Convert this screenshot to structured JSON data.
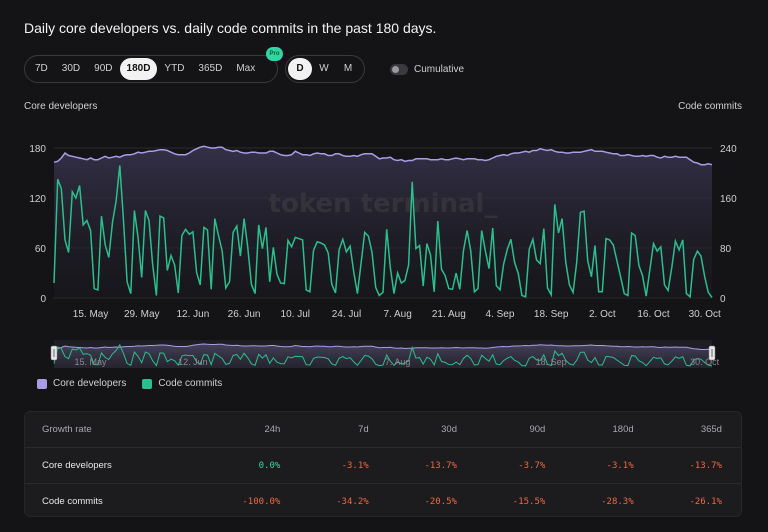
{
  "title": "Daily core developers vs. daily code commits in the past 180 days.",
  "range_buttons": [
    "7D",
    "30D",
    "90D",
    "180D",
    "YTD",
    "365D",
    "Max"
  ],
  "range_selected": "180D",
  "pro_badge": "Pro",
  "granularity_buttons": [
    "D",
    "W",
    "M"
  ],
  "granularity_selected": "D",
  "cumulative_label": "Cumulative",
  "cumulative_on": false,
  "watermark": "token terminal_",
  "colors": {
    "developers": "#a99de6",
    "commits": "#2bbf8c",
    "positive": "#3fd49a",
    "negative": "#f0683c",
    "background": "#141416"
  },
  "chart_data": {
    "type": "line",
    "y_left": {
      "label": "Core developers",
      "ticks": [
        0,
        60,
        120,
        180
      ],
      "range": [
        0,
        180
      ]
    },
    "y_right": {
      "label": "Code commits",
      "ticks": [
        0,
        80,
        160,
        240
      ],
      "range": [
        0,
        240
      ]
    },
    "x_ticks": [
      "15. May",
      "29. May",
      "12. Jun",
      "26. Jun",
      "10. Jul",
      "24. Jul",
      "7. Aug",
      "21. Aug",
      "4. Sep",
      "18. Sep",
      "2. Oct",
      "16. Oct",
      "30. Oct"
    ],
    "x_tick_days": [
      10,
      24,
      38,
      52,
      66,
      80,
      94,
      108,
      122,
      136,
      150,
      164,
      178
    ],
    "grid": true,
    "legend_position": "bottom-left",
    "series": [
      {
        "name": "Core developers",
        "axis": "left",
        "values": [
          163,
          164,
          168,
          174,
          171,
          170,
          169,
          168,
          167,
          166,
          168,
          166,
          166,
          168,
          170,
          168,
          169,
          170,
          169,
          171,
          172,
          172,
          173,
          175,
          174,
          175,
          176,
          176,
          177,
          178,
          178,
          177,
          175,
          173,
          172,
          172,
          172,
          174,
          177,
          179,
          181,
          182,
          181,
          180,
          180,
          181,
          181,
          178,
          177,
          176,
          177,
          175,
          174,
          174,
          175,
          175,
          174,
          174,
          174,
          176,
          176,
          174,
          172,
          171,
          171,
          172,
          176,
          174,
          172,
          172,
          171,
          173,
          174,
          173,
          173,
          171,
          171,
          173,
          173,
          171,
          170,
          170,
          171,
          170,
          172,
          173,
          173,
          173,
          170,
          167,
          168,
          168,
          169,
          166,
          165,
          166,
          164,
          165,
          165,
          167,
          167,
          167,
          167,
          166,
          166,
          166,
          167,
          166,
          166,
          167,
          168,
          167,
          166,
          167,
          167,
          167,
          166,
          166,
          165,
          166,
          168,
          170,
          171,
          172,
          171,
          173,
          174,
          174,
          175,
          176,
          175,
          177,
          177,
          179,
          178,
          177,
          178,
          176,
          175,
          175,
          174,
          174,
          175,
          175,
          175,
          176,
          177,
          178,
          176,
          176,
          176,
          175,
          174,
          173,
          173,
          171,
          171,
          172,
          171,
          170,
          170,
          171,
          170,
          171,
          171,
          169,
          168,
          170,
          169,
          169,
          170,
          169,
          169,
          169,
          166,
          163,
          162,
          160,
          160,
          161,
          160
        ]
      },
      {
        "name": "Code commits",
        "axis": "right",
        "values": [
          24,
          190,
          175,
          93,
          73,
          170,
          160,
          180,
          117,
          124,
          108,
          15,
          13,
          131,
          85,
          65,
          121,
          155,
          212,
          124,
          26,
          7,
          140,
          96,
          33,
          140,
          124,
          53,
          4,
          131,
          128,
          44,
          68,
          53,
          8,
          100,
          110,
          102,
          106,
          41,
          21,
          113,
          109,
          14,
          127,
          100,
          75,
          16,
          26,
          105,
          115,
          67,
          127,
          82,
          22,
          7,
          117,
          79,
          113,
          26,
          81,
          38,
          24,
          23,
          92,
          82,
          97,
          95,
          93,
          13,
          10,
          76,
          90,
          88,
          85,
          72,
          22,
          8,
          77,
          94,
          74,
          83,
          41,
          7,
          56,
          105,
          99,
          73,
          17,
          4,
          9,
          110,
          49,
          7,
          40,
          24,
          28,
          53,
          186,
          79,
          84,
          19,
          87,
          69,
          10,
          123,
          46,
          36,
          15,
          14,
          40,
          14,
          75,
          108,
          76,
          10,
          15,
          108,
          75,
          47,
          112,
          20,
          13,
          54,
          78,
          94,
          57,
          39,
          4,
          2,
          78,
          94,
          61,
          55,
          111,
          16,
          5,
          150,
          104,
          127,
          57,
          21,
          9,
          57,
          137,
          139,
          60,
          34,
          84,
          10,
          10,
          95,
          93,
          85,
          59,
          34,
          7,
          4,
          104,
          100,
          52,
          36,
          3,
          46,
          87,
          75,
          82,
          21,
          12,
          49,
          91,
          77,
          93,
          7,
          2,
          62,
          75,
          67,
          34,
          9,
          1
        ]
      }
    ]
  },
  "navigator": {
    "ticks": [
      "15. May",
      "12. Jun",
      "7. Aug",
      "18. Sep",
      "30. Oct"
    ]
  },
  "legend": [
    {
      "label": "Core developers",
      "color": "#a99de6"
    },
    {
      "label": "Code commits",
      "color": "#2bbf8c"
    }
  ],
  "table": {
    "headers": [
      "Growth rate",
      "24h",
      "7d",
      "30d",
      "90d",
      "180d",
      "365d"
    ],
    "rows": [
      {
        "label": "Core developers",
        "values": [
          "0.0%",
          "-3.1%",
          "-13.7%",
          "-3.7%",
          "-3.1%",
          "-13.7%"
        ],
        "signs": [
          "pos",
          "neg",
          "neg",
          "neg",
          "neg",
          "neg"
        ]
      },
      {
        "label": "Code commits",
        "values": [
          "-100.0%",
          "-34.2%",
          "-20.5%",
          "-15.5%",
          "-28.3%",
          "-26.1%"
        ],
        "signs": [
          "neg",
          "neg",
          "neg",
          "neg",
          "neg",
          "neg"
        ]
      }
    ]
  }
}
